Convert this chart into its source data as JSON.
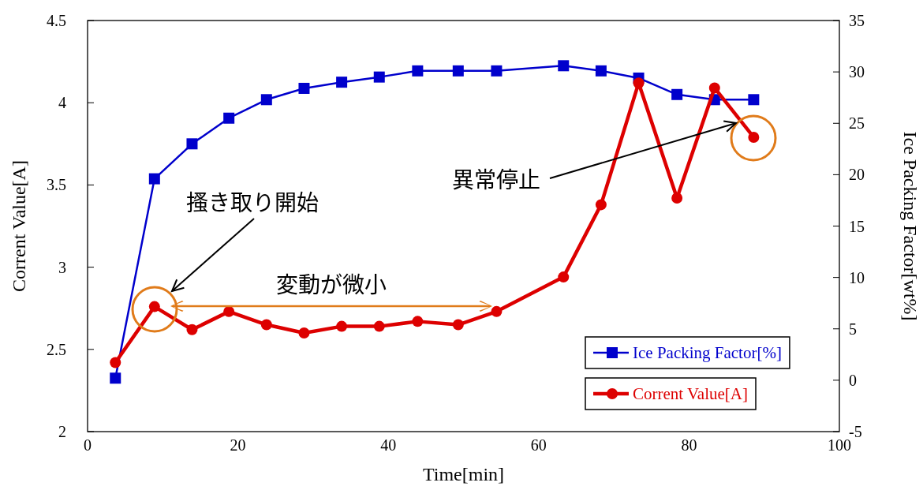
{
  "chart_data": {
    "type": "line",
    "xlabel": "Time[min]",
    "ylabel": "Corrent Value[A]",
    "y2label": "Ice Packing Factor[wt%]",
    "x": [
      3.7,
      8.9,
      13.9,
      18.8,
      23.8,
      28.8,
      33.8,
      38.8,
      43.9,
      49.3,
      54.4,
      63.3,
      68.3,
      73.3,
      78.4,
      83.4,
      88.6
    ],
    "series": [
      {
        "name": "Ice Packing Factor[%]",
        "color": "#0000cc",
        "axis": "y2",
        "marker": "square",
        "values": [
          0.2,
          19.6,
          23.0,
          25.5,
          27.3,
          28.4,
          29.0,
          29.5,
          30.1,
          30.1,
          30.1,
          30.6,
          30.1,
          29.4,
          27.8,
          27.3,
          27.3
        ]
      },
      {
        "name": "Corrent Value[A]",
        "color": "#dd0000",
        "marker": "circle",
        "values": [
          2.42,
          2.76,
          2.62,
          2.73,
          2.65,
          2.6,
          2.64,
          2.64,
          2.67,
          2.65,
          2.73,
          2.94,
          3.38,
          4.12,
          3.42,
          4.09,
          3.79
        ]
      }
    ],
    "xlim": [
      0,
      100
    ],
    "xticks": [
      0,
      20,
      40,
      60,
      80,
      100
    ],
    "ylim": [
      2,
      4.5
    ],
    "yticks": [
      2,
      2.5,
      3,
      3.5,
      4,
      4.5
    ],
    "y2lim": [
      -5,
      35
    ],
    "y2ticks": [
      -5,
      0,
      5,
      10,
      15,
      20,
      25,
      30,
      35
    ],
    "grid": false,
    "legend": "bottom right",
    "annotations": [
      "搔き取り開始",
      "変動が微小",
      "異常停止"
    ]
  }
}
